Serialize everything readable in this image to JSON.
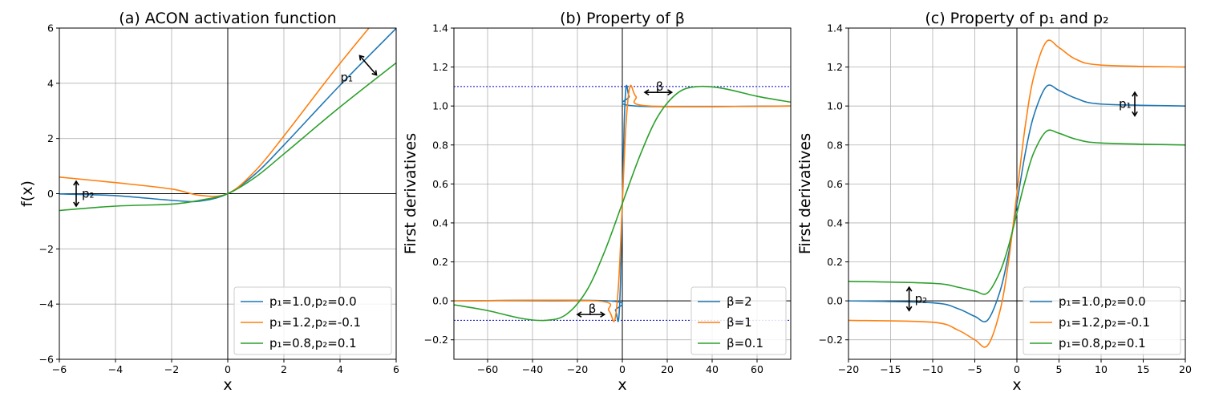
{
  "chart_data": [
    {
      "type": "line",
      "title": "(a) ACON activation function",
      "xlabel": "x",
      "ylabel": "f(x)",
      "xlim": [
        -6,
        6
      ],
      "ylim": [
        -6,
        6
      ],
      "xticks": [
        -6,
        -4,
        -2,
        0,
        2,
        4,
        6
      ],
      "yticks": [
        -6,
        -4,
        -2,
        0,
        2,
        4,
        6
      ],
      "grid": true,
      "legend_position": "bottom-right",
      "series": [
        {
          "name": "p₁=1.0,p₂=0.0",
          "color": "#1f77b4",
          "x": [
            -6,
            -4,
            -2,
            -1,
            0,
            1,
            2,
            4,
            6
          ],
          "y": [
            -0.01,
            -0.07,
            -0.24,
            -0.27,
            0,
            0.73,
            1.76,
            3.93,
            5.99
          ]
        },
        {
          "name": "p₁=1.2,p₂=-0.1",
          "color": "#ff7f0e",
          "x": [
            -6,
            -4,
            -2,
            -1,
            0,
            1,
            2,
            4,
            6
          ],
          "y": [
            0.6,
            0.4,
            0.17,
            -0.06,
            0,
            0.85,
            2.09,
            4.72,
            7.19
          ]
        },
        {
          "name": "p₁=0.8,p₂=0.1",
          "color": "#2ca02c",
          "x": [
            -6,
            -4,
            -2,
            -1,
            0,
            1,
            2,
            4,
            6
          ],
          "y": [
            -0.61,
            -0.45,
            -0.38,
            -0.24,
            0,
            0.61,
            1.44,
            3.14,
            4.74
          ]
        }
      ],
      "annotations": [
        {
          "text": "p₂",
          "arrow": "vertical",
          "x": -5.4,
          "y_from": 0.45,
          "y_to": -0.45
        },
        {
          "text": "p₁",
          "arrow": "diagonal",
          "x_from": 4.7,
          "y_from": 5.0,
          "x_to": 5.3,
          "y_to": 4.3
        }
      ]
    },
    {
      "type": "line",
      "title": "(b) Property of β",
      "xlabel": "x",
      "ylabel": "First derivatives",
      "xlim": [
        -75,
        75
      ],
      "ylim": [
        -0.3,
        1.4
      ],
      "xticks": [
        -60,
        -40,
        -20,
        0,
        20,
        40,
        60
      ],
      "yticks": [
        -0.2,
        0.0,
        0.2,
        0.4,
        0.6,
        0.8,
        1.0,
        1.2,
        1.4
      ],
      "grid": true,
      "legend_position": "bottom-right",
      "hlines": [
        1.1,
        -0.1
      ],
      "hline_color": "#0000cc",
      "series": [
        {
          "name": "β=2",
          "color": "#1f77b4",
          "x": [
            -75,
            -6,
            -3,
            -1.7,
            -0.8,
            0,
            0.8,
            1.7,
            3,
            6,
            75
          ],
          "y": [
            0,
            0,
            -0.05,
            -0.1,
            0.1,
            0.5,
            0.9,
            1.1,
            1.05,
            1.0,
            1.0
          ]
        },
        {
          "name": "β=1",
          "color": "#ff7f0e",
          "x": [
            -75,
            -12,
            -6,
            -3.4,
            -1.6,
            0,
            1.6,
            3.4,
            6,
            12,
            75
          ],
          "y": [
            0,
            0,
            -0.05,
            -0.1,
            0.1,
            0.5,
            0.9,
            1.1,
            1.05,
            1.0,
            1.0
          ]
        },
        {
          "name": "β=0.1",
          "color": "#2ca02c",
          "x": [
            -75,
            -60,
            -45,
            -34,
            -25,
            -16,
            -8,
            0,
            8,
            16,
            25,
            34,
            45,
            60,
            75
          ],
          "y": [
            -0.02,
            -0.05,
            -0.09,
            -0.1,
            -0.07,
            0.05,
            0.25,
            0.5,
            0.75,
            0.95,
            1.07,
            1.1,
            1.09,
            1.05,
            1.02
          ]
        }
      ],
      "annotations": [
        {
          "text": "β",
          "arrow": "horizontal",
          "x_from": -20,
          "x_to": -8,
          "y": -0.07
        },
        {
          "text": "β",
          "arrow": "horizontal",
          "x_from": 10,
          "x_to": 22,
          "y": 1.07
        }
      ]
    },
    {
      "type": "line",
      "title": "(c) Property of p₁ and p₂",
      "xlabel": "x",
      "ylabel": "First derivatives",
      "xlim": [
        -20,
        20
      ],
      "ylim": [
        -0.3,
        1.4
      ],
      "xticks": [
        -20,
        -15,
        -10,
        -5,
        0,
        5,
        10,
        15,
        20
      ],
      "yticks": [
        -0.2,
        0.0,
        0.2,
        0.4,
        0.6,
        0.8,
        1.0,
        1.2,
        1.4
      ],
      "grid": true,
      "legend_position": "bottom-right",
      "series": [
        {
          "name": "p₁=1.0,p₂=0.0",
          "color": "#1f77b4",
          "x": [
            -20,
            -10,
            -7,
            -5,
            -3.5,
            -2,
            -1,
            0,
            1,
            2,
            3.5,
            5,
            7,
            10,
            20
          ],
          "y": [
            0,
            -0.01,
            -0.04,
            -0.08,
            -0.1,
            0.05,
            0.24,
            0.5,
            0.76,
            0.95,
            1.1,
            1.08,
            1.04,
            1.01,
            1.0
          ]
        },
        {
          "name": "p₁=1.2,p₂=-0.1",
          "color": "#ff7f0e",
          "x": [
            -20,
            -10,
            -7,
            -5,
            -3.5,
            -2,
            -1,
            0,
            1,
            2,
            3.5,
            5,
            7,
            10,
            20
          ],
          "y": [
            -0.1,
            -0.11,
            -0.15,
            -0.2,
            -0.23,
            -0.05,
            0.2,
            0.55,
            0.9,
            1.15,
            1.33,
            1.3,
            1.24,
            1.21,
            1.2
          ]
        },
        {
          "name": "p₁=0.8,p₂=0.1",
          "color": "#2ca02c",
          "x": [
            -20,
            -10,
            -7,
            -5,
            -3.5,
            -2,
            -1,
            0,
            1,
            2,
            3.5,
            5,
            7,
            10,
            20
          ],
          "y": [
            0.1,
            0.09,
            0.07,
            0.05,
            0.04,
            0.15,
            0.28,
            0.45,
            0.62,
            0.76,
            0.87,
            0.86,
            0.83,
            0.81,
            0.8
          ]
        }
      ],
      "annotations": [
        {
          "text": "p₂",
          "arrow": "vertical",
          "x": -12.8,
          "y_from": 0.07,
          "y_to": -0.05
        },
        {
          "text": "p₁",
          "arrow": "vertical",
          "x": 14.0,
          "y_from": 1.07,
          "y_to": 0.95
        }
      ]
    }
  ]
}
